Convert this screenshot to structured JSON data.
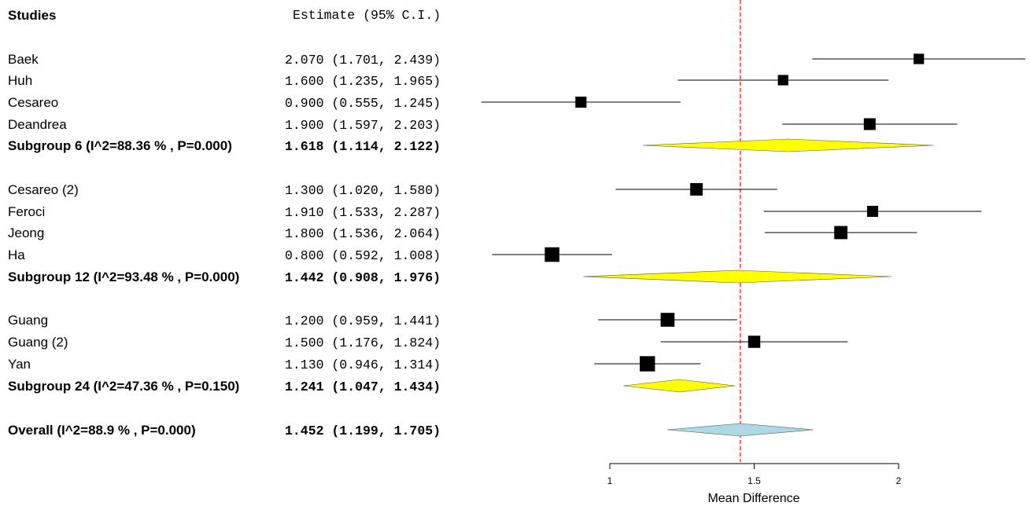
{
  "header": {
    "studies_label": "Studies",
    "estimate_label": "Estimate (95% C.I.)"
  },
  "rows": [
    {
      "label": "Baek",
      "estimate_text": "2.070 (1.701, 2.439)",
      "bold": false
    },
    {
      "label": "Huh",
      "estimate_text": "1.600 (1.235, 1.965)",
      "bold": false
    },
    {
      "label": "Cesareo",
      "estimate_text": "0.900 (0.555, 1.245)",
      "bold": false
    },
    {
      "label": "Deandrea",
      "estimate_text": "1.900 (1.597, 2.203)",
      "bold": false
    },
    {
      "label": "Subgroup 6 (I^2=88.36 % , P=0.000)",
      "estimate_text": "1.618 (1.114, 2.122)",
      "bold": true
    },
    {
      "label": "Cesareo (2)",
      "estimate_text": "1.300 (1.020, 1.580)",
      "bold": false
    },
    {
      "label": "Feroci",
      "estimate_text": "1.910 (1.533, 2.287)",
      "bold": false
    },
    {
      "label": "Jeong",
      "estimate_text": "1.800 (1.536, 2.064)",
      "bold": false
    },
    {
      "label": "Ha",
      "estimate_text": "0.800 (0.592, 1.008)",
      "bold": false
    },
    {
      "label": "Subgroup 12 (I^2=93.48 % , P=0.000)",
      "estimate_text": "1.442 (0.908, 1.976)",
      "bold": true
    },
    {
      "label": "Guang",
      "estimate_text": "1.200 (0.959, 1.441)",
      "bold": false
    },
    {
      "label": "Guang (2)",
      "estimate_text": "1.500 (1.176, 1.824)",
      "bold": false
    },
    {
      "label": "Yan",
      "estimate_text": "1.130 (0.946, 1.314)",
      "bold": false
    },
    {
      "label": "Subgroup 24 (I^2=47.36 % , P=0.150)",
      "estimate_text": "1.241 (1.047, 1.434)",
      "bold": true
    },
    {
      "label": "Overall (I^2=88.9 % , P=0.000)",
      "estimate_text": "1.452 (1.199, 1.705)",
      "bold": true
    }
  ],
  "chart_data": {
    "type": "forest",
    "xlabel": "Mean Difference",
    "xticks": [
      1,
      1.5,
      2
    ],
    "xtick_labels": [
      "1",
      "1.5",
      "2"
    ],
    "reference_line": 1.452,
    "colors": {
      "study_marker": "#000000",
      "subgroup_diamond": "#ffff00",
      "overall_diamond": "#add8e6",
      "reference_line": "#ff0000"
    },
    "studies": [
      {
        "name": "Baek",
        "estimate": 2.07,
        "lower": 1.701,
        "upper": 2.439,
        "kind": "study",
        "weight": 0.42
      },
      {
        "name": "Huh",
        "estimate": 1.6,
        "lower": 1.235,
        "upper": 1.965,
        "kind": "study",
        "weight": 0.42
      },
      {
        "name": "Cesareo",
        "estimate": 0.9,
        "lower": 0.555,
        "upper": 1.245,
        "kind": "study",
        "weight": 0.46
      },
      {
        "name": "Deandrea",
        "estimate": 1.9,
        "lower": 1.597,
        "upper": 2.203,
        "kind": "study",
        "weight": 0.5
      },
      {
        "name": "Subgroup 6",
        "estimate": 1.618,
        "lower": 1.114,
        "upper": 2.122,
        "kind": "subgroup"
      },
      {
        "name": "Cesareo (2)",
        "estimate": 1.3,
        "lower": 1.02,
        "upper": 1.58,
        "kind": "study",
        "weight": 0.54
      },
      {
        "name": "Feroci",
        "estimate": 1.91,
        "lower": 1.533,
        "upper": 2.287,
        "kind": "study",
        "weight": 0.46
      },
      {
        "name": "Jeong",
        "estimate": 1.8,
        "lower": 1.536,
        "upper": 2.064,
        "kind": "study",
        "weight": 0.58
      },
      {
        "name": "Ha",
        "estimate": 0.8,
        "lower": 0.592,
        "upper": 1.008,
        "kind": "study",
        "weight": 0.66
      },
      {
        "name": "Subgroup 12",
        "estimate": 1.442,
        "lower": 0.908,
        "upper": 1.976,
        "kind": "subgroup"
      },
      {
        "name": "Guang",
        "estimate": 1.2,
        "lower": 0.959,
        "upper": 1.441,
        "kind": "study",
        "weight": 0.62
      },
      {
        "name": "Guang (2)",
        "estimate": 1.5,
        "lower": 1.176,
        "upper": 1.824,
        "kind": "study",
        "weight": 0.52
      },
      {
        "name": "Yan",
        "estimate": 1.13,
        "lower": 0.946,
        "upper": 1.314,
        "kind": "study",
        "weight": 0.7
      },
      {
        "name": "Subgroup 24",
        "estimate": 1.241,
        "lower": 1.047,
        "upper": 1.434,
        "kind": "subgroup"
      },
      {
        "name": "Overall",
        "estimate": 1.452,
        "lower": 1.199,
        "upper": 1.705,
        "kind": "overall"
      }
    ]
  }
}
